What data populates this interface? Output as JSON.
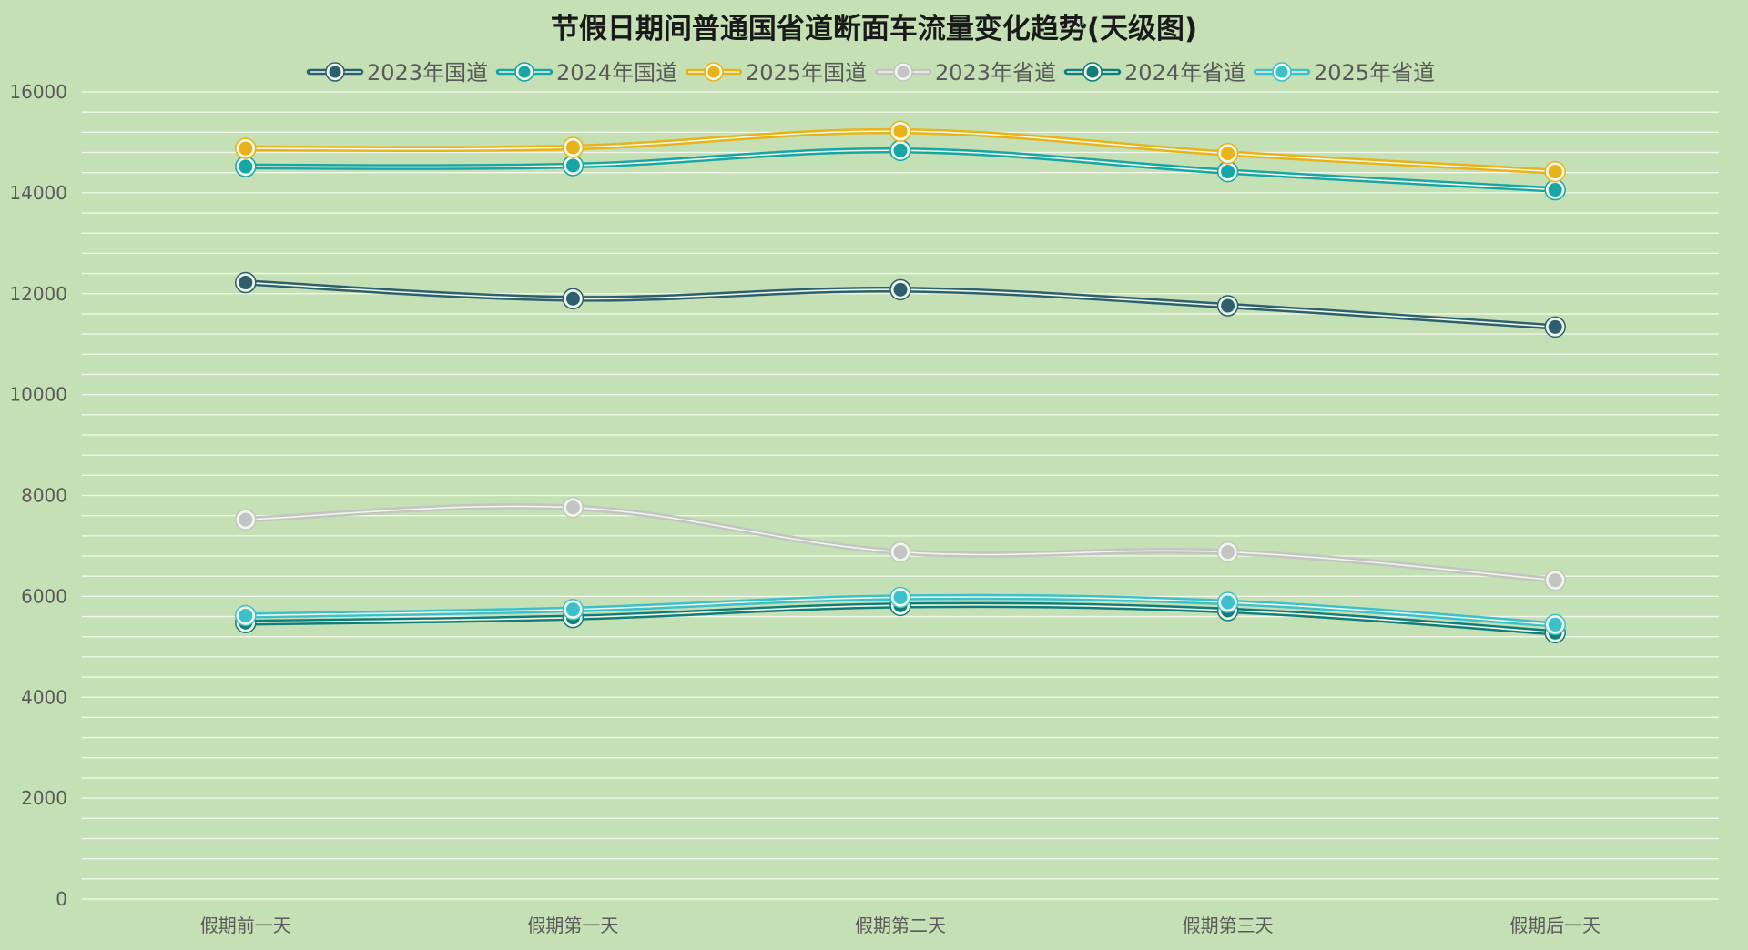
{
  "chart_data": {
    "type": "line",
    "title": "节假日期间普通国省道断面车流量变化趋势(天级图)",
    "xlabel": "",
    "ylabel": "",
    "categories": [
      "假期前一天",
      "假期第一天",
      "假期第二天",
      "假期第三天",
      "假期后一天"
    ],
    "ylim": [
      0,
      16000
    ],
    "yticks": [
      0,
      2000,
      4000,
      6000,
      8000,
      10000,
      12000,
      14000,
      16000
    ],
    "minor_grid_step": 400,
    "grid": true,
    "smooth": true,
    "legend_position": "top",
    "background": "#c5e0b4",
    "series": [
      {
        "name": "2023年国道",
        "color": "#2e5f6e",
        "values": [
          12220,
          11900,
          12080,
          11760,
          11340
        ]
      },
      {
        "name": "2024年国道",
        "color": "#17a5a5",
        "values": [
          14520,
          14540,
          14840,
          14420,
          14060
        ]
      },
      {
        "name": "2025年国道",
        "color": "#e8b319",
        "values": [
          14880,
          14900,
          15220,
          14780,
          14420
        ]
      },
      {
        "name": "2023年省道",
        "color": "#c4c4c4",
        "values": [
          7520,
          7760,
          6880,
          6880,
          6320
        ]
      },
      {
        "name": "2024年省道",
        "color": "#127c78",
        "values": [
          5480,
          5580,
          5820,
          5720,
          5280
        ]
      },
      {
        "name": "2025年省道",
        "color": "#3cc0cc",
        "values": [
          5620,
          5740,
          5980,
          5880,
          5440
        ]
      }
    ]
  }
}
